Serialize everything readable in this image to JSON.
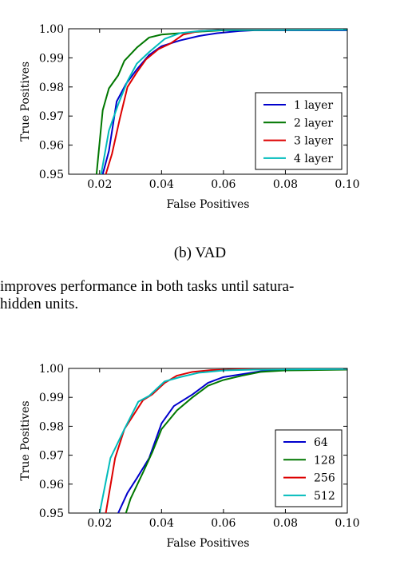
{
  "chart_data": [
    {
      "type": "line",
      "xlabel": "False Positives",
      "ylabel": "True Positives",
      "xlim": [
        0.01,
        0.1
      ],
      "ylim": [
        0.95,
        1.0
      ],
      "x_ticks": [
        "0.02",
        "0.04",
        "0.06",
        "0.08",
        "0.10"
      ],
      "y_ticks": [
        "0.95",
        "0.96",
        "0.97",
        "0.98",
        "0.99",
        "1.00"
      ],
      "legend_position": "lower-right",
      "series": [
        {
          "name": "1 layer",
          "color": "#0000cc",
          "points": [
            [
              0.021,
              0.95
            ],
            [
              0.023,
              0.958
            ],
            [
              0.0255,
              0.975
            ],
            [
              0.0285,
              0.981
            ],
            [
              0.032,
              0.986
            ],
            [
              0.036,
              0.991
            ],
            [
              0.04,
              0.994
            ],
            [
              0.046,
              0.996
            ],
            [
              0.052,
              0.9975
            ],
            [
              0.058,
              0.9985
            ],
            [
              0.065,
              0.9992
            ],
            [
              0.07,
              0.9995
            ],
            [
              0.1,
              0.9995
            ]
          ]
        },
        {
          "name": "2 layer",
          "color": "#007700",
          "points": [
            [
              0.019,
              0.95
            ],
            [
              0.021,
              0.972
            ],
            [
              0.023,
              0.9795
            ],
            [
              0.026,
              0.984
            ],
            [
              0.028,
              0.989
            ],
            [
              0.032,
              0.9935
            ],
            [
              0.036,
              0.997
            ],
            [
              0.04,
              0.998
            ],
            [
              0.046,
              0.9985
            ],
            [
              0.052,
              0.999
            ],
            [
              0.06,
              0.9995
            ],
            [
              0.1,
              0.9997
            ]
          ]
        },
        {
          "name": "3 layer",
          "color": "#dd0000",
          "points": [
            [
              0.022,
              0.95
            ],
            [
              0.024,
              0.957
            ],
            [
              0.0265,
              0.969
            ],
            [
              0.029,
              0.98
            ],
            [
              0.032,
              0.985
            ],
            [
              0.035,
              0.9895
            ],
            [
              0.039,
              0.993
            ],
            [
              0.043,
              0.995
            ],
            [
              0.047,
              0.998
            ],
            [
              0.052,
              0.9992
            ],
            [
              0.06,
              0.9997
            ],
            [
              0.1,
              0.9998
            ]
          ]
        },
        {
          "name": "4 layer",
          "color": "#00bbbb",
          "points": [
            [
              0.0205,
              0.95
            ],
            [
              0.023,
              0.965
            ],
            [
              0.026,
              0.974
            ],
            [
              0.029,
              0.982
            ],
            [
              0.032,
              0.988
            ],
            [
              0.036,
              0.992
            ],
            [
              0.041,
              0.9965
            ],
            [
              0.046,
              0.9985
            ],
            [
              0.052,
              0.9992
            ],
            [
              0.06,
              0.9996
            ],
            [
              0.1,
              0.9997
            ]
          ]
        }
      ]
    },
    {
      "type": "line",
      "xlabel": "False Positives",
      "ylabel": "True Positives",
      "xlim": [
        0.01,
        0.1
      ],
      "ylim": [
        0.95,
        1.0
      ],
      "x_ticks": [
        "0.02",
        "0.04",
        "0.06",
        "0.08",
        "0.10"
      ],
      "y_ticks": [
        "0.95",
        "0.96",
        "0.97",
        "0.98",
        "0.99",
        "1.00"
      ],
      "legend_position": "lower-right",
      "series": [
        {
          "name": "64",
          "color": "#0000cc",
          "points": [
            [
              0.026,
              0.95
            ],
            [
              0.029,
              0.957
            ],
            [
              0.032,
              0.962
            ],
            [
              0.036,
              0.969
            ],
            [
              0.04,
              0.981
            ],
            [
              0.044,
              0.987
            ],
            [
              0.05,
              0.991
            ],
            [
              0.055,
              0.995
            ],
            [
              0.06,
              0.997
            ],
            [
              0.066,
              0.998
            ],
            [
              0.072,
              0.999
            ],
            [
              0.08,
              0.9995
            ],
            [
              0.1,
              0.9997
            ]
          ]
        },
        {
          "name": "128",
          "color": "#007700",
          "points": [
            [
              0.0285,
              0.95
            ],
            [
              0.03,
              0.955
            ],
            [
              0.034,
              0.964
            ],
            [
              0.037,
              0.971
            ],
            [
              0.04,
              0.979
            ],
            [
              0.045,
              0.9855
            ],
            [
              0.05,
              0.99
            ],
            [
              0.055,
              0.994
            ],
            [
              0.06,
              0.996
            ],
            [
              0.066,
              0.9975
            ],
            [
              0.072,
              0.9988
            ],
            [
              0.08,
              0.9993
            ],
            [
              0.1,
              0.9996
            ]
          ]
        },
        {
          "name": "256",
          "color": "#dd0000",
          "points": [
            [
              0.022,
              0.95
            ],
            [
              0.025,
              0.969
            ],
            [
              0.028,
              0.979
            ],
            [
              0.031,
              0.984
            ],
            [
              0.034,
              0.989
            ],
            [
              0.037,
              0.991
            ],
            [
              0.041,
              0.995
            ],
            [
              0.045,
              0.9975
            ],
            [
              0.05,
              0.9988
            ],
            [
              0.056,
              0.9994
            ],
            [
              0.065,
              0.9997
            ],
            [
              0.1,
              0.9998
            ]
          ]
        },
        {
          "name": "512",
          "color": "#00bbbb",
          "points": [
            [
              0.02,
              0.95
            ],
            [
              0.0235,
              0.969
            ],
            [
              0.028,
              0.979
            ],
            [
              0.0325,
              0.9885
            ],
            [
              0.036,
              0.9905
            ],
            [
              0.041,
              0.9955
            ],
            [
              0.046,
              0.997
            ],
            [
              0.052,
              0.9985
            ],
            [
              0.06,
              0.9993
            ],
            [
              0.07,
              0.9996
            ],
            [
              0.1,
              0.9998
            ]
          ]
        }
      ]
    }
  ],
  "caption_b": "(b) VAD",
  "body_line1": "improves performance in both tasks until satura-",
  "body_line2": "hidden units."
}
